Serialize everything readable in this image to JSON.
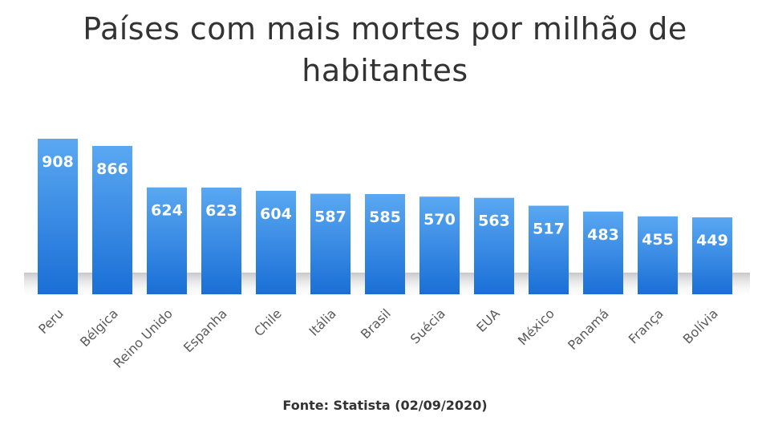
{
  "chart_data": {
    "type": "bar",
    "title": "Países com mais mortes por milhão de habitantes",
    "categories": [
      "Peru",
      "Bélgica",
      "Reino Unido",
      "Espanha",
      "Chile",
      "Itália",
      "Brasil",
      "Suécia",
      "EUA",
      "México",
      "Panamá",
      "França",
      "Bolívia"
    ],
    "values": [
      908,
      866,
      624,
      623,
      604,
      587,
      585,
      570,
      563,
      517,
      483,
      455,
      449
    ],
    "xlabel": "",
    "ylabel": "",
    "ylim": [
      0,
      908
    ],
    "data_labels": "inside-top",
    "grid": false,
    "bar_color_top": "#5aa8f2",
    "bar_color_bottom": "#1a6fd6",
    "source": "Fonte: Statista (02/09/2020)"
  }
}
